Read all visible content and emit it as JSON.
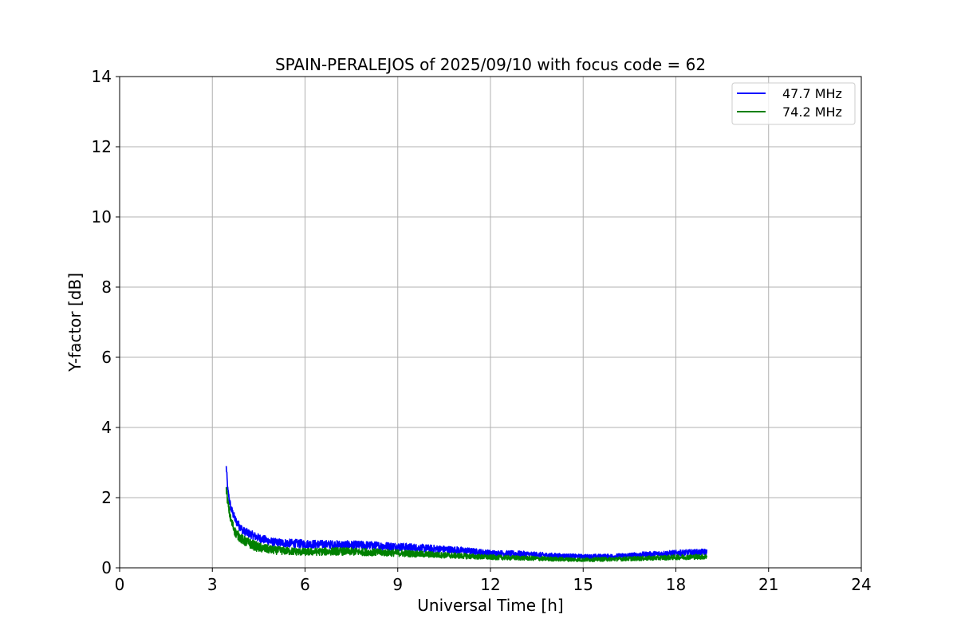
{
  "chart_data": {
    "type": "line",
    "title": "SPAIN-PERALEJOS of 2025/09/10 with focus code = 62",
    "xlabel": "Universal Time [h]",
    "ylabel": "Y-factor [dB]",
    "xlim": [
      0,
      24
    ],
    "ylim": [
      0,
      14
    ],
    "xticks": [
      "0",
      "3",
      "6",
      "9",
      "12",
      "15",
      "18",
      "21",
      "24"
    ],
    "yticks": [
      "0",
      "2",
      "4",
      "6",
      "8",
      "10",
      "12",
      "14"
    ],
    "grid": true,
    "legend_position": "top-right",
    "series": [
      {
        "name": "47.7 MHz",
        "color": "#0000ff",
        "x": [
          3.45,
          3.5,
          3.6,
          3.75,
          4.0,
          4.5,
          5.0,
          6.0,
          7.0,
          8.0,
          9.0,
          10.0,
          11.0,
          12.0,
          13.0,
          14.0,
          15.0,
          16.0,
          17.0,
          18.0,
          19.0
        ],
        "y": [
          2.9,
          2.2,
          1.7,
          1.35,
          1.05,
          0.85,
          0.72,
          0.68,
          0.66,
          0.64,
          0.6,
          0.55,
          0.5,
          0.42,
          0.4,
          0.35,
          0.32,
          0.33,
          0.38,
          0.42,
          0.45
        ],
        "noise": 0.12
      },
      {
        "name": "74.2 MHz",
        "color": "#008000",
        "x": [
          3.45,
          3.5,
          3.6,
          3.75,
          4.0,
          4.5,
          5.0,
          6.0,
          7.0,
          8.0,
          9.0,
          10.0,
          11.0,
          12.0,
          13.0,
          14.0,
          15.0,
          16.0,
          17.0,
          18.0,
          19.0
        ],
        "y": [
          2.3,
          1.85,
          1.35,
          1.0,
          0.78,
          0.58,
          0.5,
          0.45,
          0.47,
          0.45,
          0.42,
          0.38,
          0.34,
          0.3,
          0.28,
          0.25,
          0.23,
          0.25,
          0.27,
          0.3,
          0.32
        ],
        "noise": 0.14
      }
    ]
  }
}
